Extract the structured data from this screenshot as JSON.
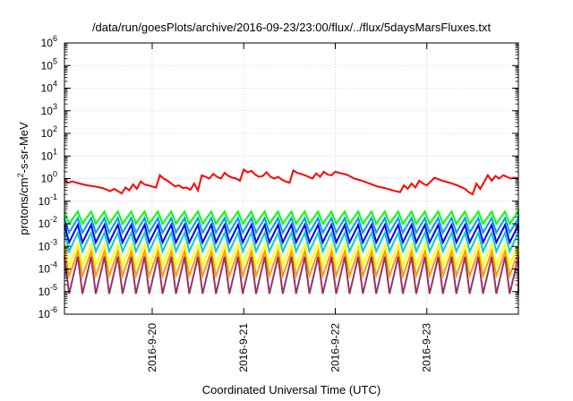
{
  "chart_data": {
    "type": "line",
    "title": "/data/run/goesPlots/archive/2016-09-23/23:00/flux/../flux/5daysMarsFluxes.txt",
    "xlabel": "Coordinated Universal Time (UTC)",
    "ylabel": "protons/cm²-s-sr-MeV",
    "ylabel_html": "protons/cm<sup>2</sup>-s-sr-MeV",
    "yscale": "log",
    "ylim": [
      1e-06,
      1000000.0
    ],
    "xlim": [
      "2016-09-19 01:00",
      "2016-09-24 00:00"
    ],
    "grid": true,
    "x_ticks": [
      "2016-9-20",
      "2016-9-21",
      "2016-9-22",
      "2016-9-23"
    ],
    "y_ticks": [
      {
        "base": "10",
        "exp": "-6"
      },
      {
        "base": "10",
        "exp": "-5"
      },
      {
        "base": "10",
        "exp": "-4"
      },
      {
        "base": "10",
        "exp": "-3"
      },
      {
        "base": "10",
        "exp": "-2"
      },
      {
        "base": "10",
        "exp": "-1"
      },
      {
        "base": "10",
        "exp": "0"
      },
      {
        "base": "10",
        "exp": "1"
      },
      {
        "base": "10",
        "exp": "2"
      },
      {
        "base": "10",
        "exp": "3"
      },
      {
        "base": "10",
        "exp": "4"
      },
      {
        "base": "10",
        "exp": "5"
      },
      {
        "base": "10",
        "exp": "6"
      }
    ],
    "series": [
      {
        "color": "#ff0000",
        "x": [
          "2016-09-19 01:00",
          "2016-09-19 02:00",
          "2016-09-19 03:00",
          "2016-09-19 05:00",
          "2016-09-19 07:00",
          "2016-09-19 09:00",
          "2016-09-19 11:00",
          "2016-09-19 12:30",
          "2016-09-19 13:00",
          "2016-09-19 14:00",
          "2016-09-19 15:30",
          "2016-09-19 16:00",
          "2016-09-19 17:00",
          "2016-09-19 18:00",
          "2016-09-19 19:00",
          "2016-09-19 20:00",
          "2016-09-19 21:00",
          "2016-09-19 22:00",
          "2016-09-19 23:00",
          "2016-09-20 00:00",
          "2016-09-20 01:00",
          "2016-09-20 02:00",
          "2016-09-20 03:00",
          "2016-09-20 04:00",
          "2016-09-20 05:00",
          "2016-09-20 06:00",
          "2016-09-20 07:00",
          "2016-09-20 08:00",
          "2016-09-20 09:00",
          "2016-09-20 10:00",
          "2016-09-20 11:00",
          "2016-09-20 12:00",
          "2016-09-20 13:00",
          "2016-09-20 14:00",
          "2016-09-20 15:00",
          "2016-09-20 16:00",
          "2016-09-20 17:00",
          "2016-09-20 18:00",
          "2016-09-20 19:00",
          "2016-09-20 20:00",
          "2016-09-20 21:00",
          "2016-09-20 22:00",
          "2016-09-20 23:00",
          "2016-09-21 00:00",
          "2016-09-21 01:00",
          "2016-09-21 02:00",
          "2016-09-21 03:00",
          "2016-09-21 04:00",
          "2016-09-21 05:00",
          "2016-09-21 06:00",
          "2016-09-21 07:00",
          "2016-09-21 08:00",
          "2016-09-21 09:00",
          "2016-09-21 10:00",
          "2016-09-21 11:00",
          "2016-09-21 12:00",
          "2016-09-21 13:00",
          "2016-09-21 14:00",
          "2016-09-21 15:00",
          "2016-09-21 16:00",
          "2016-09-21 17:00",
          "2016-09-21 18:00",
          "2016-09-21 19:00",
          "2016-09-21 20:00",
          "2016-09-21 21:00",
          "2016-09-21 22:00",
          "2016-09-21 23:00",
          "2016-09-22 00:00",
          "2016-09-22 01:00",
          "2016-09-22 03:00",
          "2016-09-22 05:00",
          "2016-09-22 07:00",
          "2016-09-22 09:00",
          "2016-09-22 11:00",
          "2016-09-22 13:00",
          "2016-09-22 15:00",
          "2016-09-22 17:00",
          "2016-09-22 18:00",
          "2016-09-22 19:00",
          "2016-09-22 20:00",
          "2016-09-22 21:00",
          "2016-09-22 22:00",
          "2016-09-22 23:00",
          "2016-09-23 00:00",
          "2016-09-23 02:00",
          "2016-09-23 04:00",
          "2016-09-23 06:00",
          "2016-09-23 08:00",
          "2016-09-23 10:00",
          "2016-09-23 11:00",
          "2016-09-23 12:00",
          "2016-09-23 13:00",
          "2016-09-23 14:00",
          "2016-09-23 15:00",
          "2016-09-23 16:00",
          "2016-09-23 17:00",
          "2016-09-23 18:00",
          "2016-09-23 19:00",
          "2016-09-23 20:00",
          "2016-09-23 21:00",
          "2016-09-23 22:00",
          "2016-09-23 23:00",
          "2016-09-24 00:00"
        ],
        "y": [
          0.8,
          0.65,
          0.75,
          0.6,
          0.5,
          0.45,
          0.38,
          0.3,
          0.28,
          0.35,
          0.25,
          0.22,
          0.4,
          0.3,
          0.55,
          0.35,
          0.75,
          0.55,
          0.5,
          0.45,
          0.4,
          1.4,
          1.0,
          0.8,
          0.6,
          0.45,
          0.5,
          0.38,
          0.4,
          0.32,
          0.6,
          0.3,
          1.4,
          1.2,
          1.0,
          1.6,
          1.2,
          1.0,
          1.8,
          1.3,
          1.1,
          1.0,
          0.8,
          2.5,
          1.9,
          2.2,
          1.5,
          1.2,
          1.3,
          1.9,
          1.2,
          1.0,
          1.2,
          0.9,
          0.75,
          0.65,
          2.3,
          1.8,
          1.6,
          1.4,
          1.2,
          1.0,
          1.7,
          1.2,
          2.0,
          1.5,
          1.4,
          2.0,
          1.8,
          1.5,
          1.0,
          0.8,
          0.6,
          0.45,
          0.38,
          0.3,
          0.25,
          0.5,
          0.35,
          0.6,
          0.4,
          0.8,
          0.6,
          0.5,
          1.1,
          0.8,
          0.65,
          0.5,
          0.35,
          0.25,
          0.2,
          0.6,
          0.35,
          0.7,
          1.4,
          0.8,
          1.3,
          1.0,
          1.4,
          1.2,
          1.0,
          1.1,
          1.05
        ]
      },
      {
        "color": "#00ff00",
        "x": [
          "2016-09-19 01:00",
          "2016-09-24 00:00"
        ],
        "y": [
          0.03,
          0.025
        ],
        "pattern": "sawtooth",
        "period_hours": 3.5,
        "min": 0.01,
        "max": 0.035
      },
      {
        "color": "#0099ff",
        "x": [
          "2016-09-19 01:00",
          "2016-09-24 00:00"
        ],
        "y": [
          0.015,
          0.012
        ],
        "pattern": "sawtooth",
        "period_hours": 3.5,
        "min": 0.004,
        "max": 0.018
      },
      {
        "color": "#0000ff",
        "x": [
          "2016-09-19 01:00",
          "2016-09-24 00:00"
        ],
        "y": [
          0.008,
          0.006
        ],
        "pattern": "sawtooth",
        "period_hours": 3.5,
        "min": 0.0015,
        "max": 0.009
      },
      {
        "color": "#00cccc",
        "x": [
          "2016-09-19 01:00",
          "2016-09-24 00:00"
        ],
        "y": [
          0.004,
          0.003
        ],
        "pattern": "sawtooth",
        "period_hours": 3.5,
        "min": 0.0006,
        "max": 0.004
      },
      {
        "color": "#ffff00",
        "x": [
          "2016-09-19 01:00",
          "2016-09-24 00:00"
        ],
        "y": [
          0.0012,
          0.0009
        ],
        "pattern": "sawtooth",
        "period_hours": 3.5,
        "min": 0.00015,
        "max": 0.0012
      },
      {
        "color": "#ff9900",
        "x": [
          "2016-09-19 01:00",
          "2016-09-24 00:00"
        ],
        "y": [
          0.0006,
          0.0005
        ],
        "pattern": "sawtooth",
        "period_hours": 3.5,
        "min": 5e-05,
        "max": 0.0006
      },
      {
        "color": "#993366",
        "x": [
          "2016-09-19 01:00",
          "2016-09-24 00:00"
        ],
        "y": [
          0.0003,
          0.00025
        ],
        "pattern": "sawtooth",
        "period_hours": 3.5,
        "min": 8e-06,
        "max": 0.00035
      }
    ]
  }
}
